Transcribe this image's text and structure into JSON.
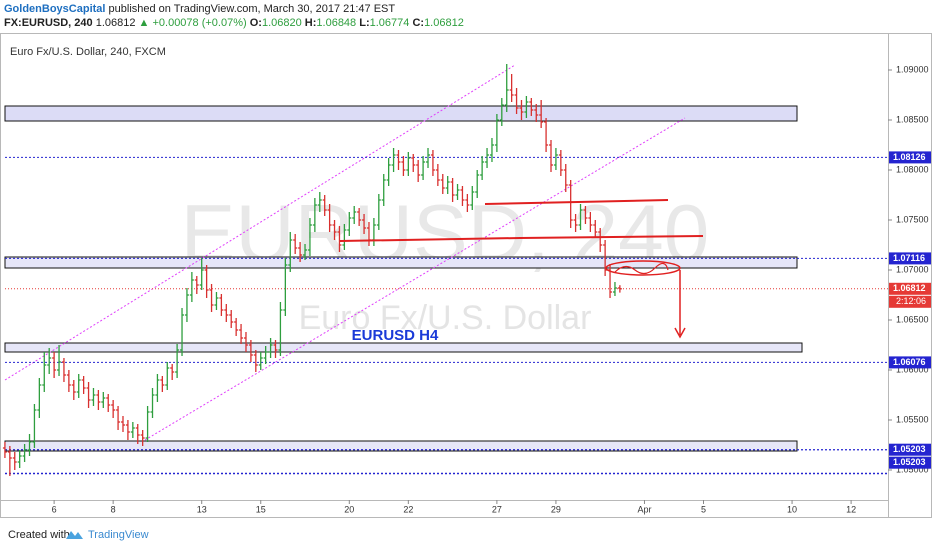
{
  "header": {
    "author": "GoldenBoysCapital",
    "published": "published on TradingView.com, March 30, 2017 21:47 EST",
    "symbol": "FX:EURUSD, 240",
    "last": "1.06812",
    "change": "▲ +0.00078 (+0.07%)",
    "o_label": "O:",
    "o": "1.06820",
    "h_label": "H:",
    "h": "1.06848",
    "l_label": "L:",
    "l": "1.06774",
    "c_label": "C:",
    "c": "1.06812"
  },
  "footer": {
    "created": "Created with",
    "brand": "TradingView"
  },
  "chart_data": {
    "type": "ohlc",
    "title": "Euro Fx/U.S. Dollar, 240, FXCM",
    "watermark": "EURUSD, 240",
    "watermark_subtitle": "Euro Fx/U.S. Dollar",
    "annotation": "EURUSD H4",
    "up_color": "#2e9e3e",
    "down_color": "#d8302f",
    "xlim": [
      -1,
      179.5
    ],
    "xticks": [
      {
        "value": 10,
        "label": "6"
      },
      {
        "value": 22,
        "label": "8"
      },
      {
        "value": 40,
        "label": "13"
      },
      {
        "value": 52,
        "label": "15"
      },
      {
        "value": 70,
        "label": "20"
      },
      {
        "value": 82,
        "label": "22"
      },
      {
        "value": 100,
        "label": "27"
      },
      {
        "value": 112,
        "label": "29"
      },
      {
        "value": 130,
        "label": "Apr"
      },
      {
        "value": 142,
        "label": "5"
      },
      {
        "value": 160,
        "label": "10"
      },
      {
        "value": 172,
        "label": "12"
      }
    ],
    "ylim": [
      1.047,
      1.0942
    ],
    "yticks": [
      {
        "value": 1.05,
        "label": "1.05000"
      },
      {
        "value": 1.055,
        "label": "1.05500"
      },
      {
        "value": 1.06,
        "label": "1.06000"
      },
      {
        "value": 1.065,
        "label": "1.06500"
      },
      {
        "value": 1.07,
        "label": "1.07000"
      },
      {
        "value": 1.075,
        "label": "1.07500"
      },
      {
        "value": 1.08,
        "label": "1.08000"
      },
      {
        "value": 1.085,
        "label": "1.08500"
      },
      {
        "value": 1.09,
        "label": "1.09000"
      }
    ],
    "levels": [
      {
        "value": 1.08126,
        "label": "1.08126",
        "color": "#2424d0"
      },
      {
        "value": 1.07116,
        "label": "1.07116",
        "color": "#2424d0"
      },
      {
        "value": 1.06076,
        "label": "1.06076",
        "color": "#2424d0"
      },
      {
        "value": 1.05203,
        "label": "1.05203",
        "color": "#2424d0"
      },
      {
        "value": 1.05203,
        "label": "1.05203",
        "color": "#2424d0"
      }
    ],
    "last_price": {
      "value": 1.06812,
      "label": "1.06812",
      "color": "#e53935"
    },
    "countdown": "2:12:06",
    "bars": [
      [
        1.0522,
        1.0528,
        1.0512,
        1.0518
      ],
      [
        1.0518,
        1.0524,
        1.0494,
        1.0512
      ],
      [
        1.0512,
        1.0518,
        1.05,
        1.0508
      ],
      [
        1.0508,
        1.052,
        1.0502,
        1.0514
      ],
      [
        1.0514,
        1.0526,
        1.0508,
        1.052
      ],
      [
        1.052,
        1.0536,
        1.0514,
        1.0528
      ],
      [
        1.0528,
        1.0566,
        1.0522,
        1.056
      ],
      [
        1.056,
        1.0592,
        1.0552,
        1.0585
      ],
      [
        1.0585,
        1.0618,
        1.0578,
        1.0605
      ],
      [
        1.0605,
        1.0622,
        1.0596,
        1.0612
      ],
      [
        1.0612,
        1.0618,
        1.0592,
        1.06
      ],
      [
        1.06,
        1.0625,
        1.0594,
        1.0608
      ],
      [
        1.0608,
        1.0612,
        1.0588,
        1.0595
      ],
      [
        1.0595,
        1.06,
        1.0578,
        1.0585
      ],
      [
        1.0585,
        1.059,
        1.057,
        1.0578
      ],
      [
        1.0578,
        1.0596,
        1.0572,
        1.059
      ],
      [
        1.059,
        1.0594,
        1.0576,
        1.0582
      ],
      [
        1.0582,
        1.0588,
        1.0562,
        1.057
      ],
      [
        1.057,
        1.0582,
        1.0564,
        1.0575
      ],
      [
        1.0575,
        1.058,
        1.056,
        1.0568
      ],
      [
        1.0568,
        1.0578,
        1.0562,
        1.0572
      ],
      [
        1.0572,
        1.0576,
        1.0558,
        1.0565
      ],
      [
        1.0565,
        1.057,
        1.0552,
        1.056
      ],
      [
        1.056,
        1.0564,
        1.054,
        1.0548
      ],
      [
        1.0548,
        1.0554,
        1.0538,
        1.0545
      ],
      [
        1.0545,
        1.055,
        1.053,
        1.0538
      ],
      [
        1.0538,
        1.0548,
        1.0532,
        1.0542
      ],
      [
        1.0542,
        1.0546,
        1.0526,
        1.0535
      ],
      [
        1.0535,
        1.054,
        1.0524,
        1.0532
      ],
      [
        1.0532,
        1.0564,
        1.0528,
        1.0558
      ],
      [
        1.0558,
        1.0582,
        1.0552,
        1.0575
      ],
      [
        1.0575,
        1.0596,
        1.0568,
        1.059
      ],
      [
        1.059,
        1.0594,
        1.0578,
        1.0585
      ],
      [
        1.0585,
        1.0608,
        1.058,
        1.0602
      ],
      [
        1.0602,
        1.0606,
        1.059,
        1.0598
      ],
      [
        1.0598,
        1.0626,
        1.0592,
        1.062
      ],
      [
        1.062,
        1.0662,
        1.0614,
        1.0655
      ],
      [
        1.0655,
        1.0682,
        1.0648,
        1.0675
      ],
      [
        1.0675,
        1.0698,
        1.0668,
        1.069
      ],
      [
        1.069,
        1.0694,
        1.0676,
        1.0685
      ],
      [
        1.0685,
        1.0712,
        1.068,
        1.07
      ],
      [
        1.07,
        1.0705,
        1.0672,
        1.068
      ],
      [
        1.068,
        1.0686,
        1.0658,
        1.0665
      ],
      [
        1.0665,
        1.0678,
        1.066,
        1.0672
      ],
      [
        1.0672,
        1.0676,
        1.0654,
        1.066
      ],
      [
        1.066,
        1.0666,
        1.0648,
        1.0655
      ],
      [
        1.0655,
        1.066,
        1.0642,
        1.0648
      ],
      [
        1.0648,
        1.0652,
        1.0634,
        1.064
      ],
      [
        1.064,
        1.0646,
        1.0626,
        1.0632
      ],
      [
        1.0632,
        1.0638,
        1.0618,
        1.0625
      ],
      [
        1.0625,
        1.063,
        1.0608,
        1.0615
      ],
      [
        1.0615,
        1.062,
        1.0598,
        1.0605
      ],
      [
        1.0605,
        1.0618,
        1.06,
        1.0612
      ],
      [
        1.0612,
        1.0624,
        1.0606,
        1.0618
      ],
      [
        1.0618,
        1.0632,
        1.0612,
        1.0625
      ],
      [
        1.0625,
        1.063,
        1.0612,
        1.062
      ],
      [
        1.062,
        1.0668,
        1.0614,
        1.066
      ],
      [
        1.066,
        1.0712,
        1.0654,
        1.0705
      ],
      [
        1.0705,
        1.0738,
        1.0698,
        1.073
      ],
      [
        1.073,
        1.0736,
        1.0716,
        1.0722
      ],
      [
        1.0722,
        1.0728,
        1.0708,
        1.0715
      ],
      [
        1.0715,
        1.0726,
        1.071,
        1.072
      ],
      [
        1.072,
        1.0752,
        1.0714,
        1.0745
      ],
      [
        1.0745,
        1.0772,
        1.0738,
        1.0765
      ],
      [
        1.0765,
        1.0778,
        1.0758,
        1.077
      ],
      [
        1.077,
        1.0775,
        1.0754,
        1.076
      ],
      [
        1.076,
        1.0766,
        1.0738,
        1.0745
      ],
      [
        1.0745,
        1.075,
        1.073,
        1.0738
      ],
      [
        1.0738,
        1.0744,
        1.0718,
        1.0725
      ],
      [
        1.0725,
        1.0746,
        1.072,
        1.074
      ],
      [
        1.074,
        1.0758,
        1.0734,
        1.0752
      ],
      [
        1.0752,
        1.0764,
        1.0746,
        1.0758
      ],
      [
        1.0758,
        1.0762,
        1.0744,
        1.075
      ],
      [
        1.075,
        1.0756,
        1.0736,
        1.0742
      ],
      [
        1.0742,
        1.0748,
        1.0724,
        1.073
      ],
      [
        1.073,
        1.0752,
        1.0724,
        1.0745
      ],
      [
        1.0745,
        1.0776,
        1.074,
        1.077
      ],
      [
        1.077,
        1.0796,
        1.0764,
        1.079
      ],
      [
        1.079,
        1.0812,
        1.0784,
        1.0805
      ],
      [
        1.0805,
        1.0822,
        1.0798,
        1.0815
      ],
      [
        1.0815,
        1.082,
        1.08,
        1.0808
      ],
      [
        1.0808,
        1.0814,
        1.0794,
        1.08
      ],
      [
        1.08,
        1.0818,
        1.0794,
        1.0812
      ],
      [
        1.0812,
        1.0816,
        1.0798,
        1.0805
      ],
      [
        1.0805,
        1.081,
        1.0788,
        1.0795
      ],
      [
        1.0795,
        1.0814,
        1.079,
        1.0808
      ],
      [
        1.0808,
        1.0822,
        1.0802,
        1.0815
      ],
      [
        1.0815,
        1.082,
        1.0794,
        1.08
      ],
      [
        1.08,
        1.0806,
        1.0784,
        1.079
      ],
      [
        1.079,
        1.0796,
        1.0776,
        1.0782
      ],
      [
        1.0782,
        1.0794,
        1.0776,
        1.0788
      ],
      [
        1.0788,
        1.0792,
        1.0768,
        1.0775
      ],
      [
        1.0775,
        1.0786,
        1.077,
        1.078
      ],
      [
        1.078,
        1.0784,
        1.0764,
        1.077
      ],
      [
        1.077,
        1.0776,
        1.0758,
        1.0765
      ],
      [
        1.0765,
        1.0784,
        1.076,
        1.0778
      ],
      [
        1.0778,
        1.08,
        1.0772,
        1.0795
      ],
      [
        1.0795,
        1.0814,
        1.079,
        1.0808
      ],
      [
        1.0808,
        1.0822,
        1.0802,
        1.0815
      ],
      [
        1.0815,
        1.0832,
        1.0808,
        1.0825
      ],
      [
        1.0825,
        1.0856,
        1.0818,
        1.085
      ],
      [
        1.085,
        1.0872,
        1.0844,
        1.0865
      ],
      [
        1.0865,
        1.0906,
        1.0858,
        1.088
      ],
      [
        1.088,
        1.0896,
        1.0868,
        1.0875
      ],
      [
        1.0875,
        1.0882,
        1.0856,
        1.0862
      ],
      [
        1.0862,
        1.087,
        1.085,
        1.0858
      ],
      [
        1.0858,
        1.0874,
        1.0852,
        1.0868
      ],
      [
        1.0868,
        1.0872,
        1.0854,
        1.086
      ],
      [
        1.086,
        1.0866,
        1.0848,
        1.0855
      ],
      [
        1.0855,
        1.087,
        1.0842,
        1.0848
      ],
      [
        1.0848,
        1.0852,
        1.0818,
        1.0825
      ],
      [
        1.0825,
        1.083,
        1.0798,
        1.0805
      ],
      [
        1.0805,
        1.0822,
        1.08,
        1.0815
      ],
      [
        1.0815,
        1.082,
        1.0794,
        1.08
      ],
      [
        1.08,
        1.0806,
        1.0778,
        1.0785
      ],
      [
        1.0785,
        1.079,
        1.0742,
        1.075
      ],
      [
        1.075,
        1.0756,
        1.0738,
        1.0745
      ],
      [
        1.0745,
        1.0766,
        1.074,
        1.076
      ],
      [
        1.076,
        1.0764,
        1.0746,
        1.0752
      ],
      [
        1.0752,
        1.0758,
        1.0738,
        1.0745
      ],
      [
        1.0745,
        1.075,
        1.0732,
        1.0738
      ],
      [
        1.0738,
        1.0742,
        1.0718,
        1.0725
      ],
      [
        1.0725,
        1.073,
        1.0694,
        1.07
      ],
      [
        1.07,
        1.0706,
        1.0672,
        1.0678
      ],
      [
        1.0678,
        1.0688,
        1.0674,
        1.0682
      ],
      [
        1.0682,
        1.06848,
        1.06774,
        1.06812
      ]
    ]
  }
}
